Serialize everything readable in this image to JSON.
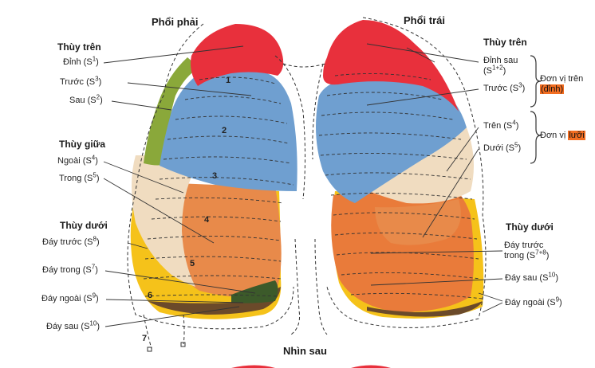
{
  "titles": {
    "right_lung": "Phổi phải",
    "left_lung": "Phổi trái",
    "view": "Nhìn sau"
  },
  "right": {
    "upper_lobe": "Thùy trên",
    "apical": {
      "name": "Đỉnh (S",
      "sup": "1",
      "end": ")"
    },
    "anterior": {
      "name": "Trước (S",
      "sup": "3",
      "end": ")"
    },
    "posterior": {
      "name": "Sau (S",
      "sup": "2",
      "end": ")"
    },
    "middle_lobe": "Thùy giữa",
    "lateral": {
      "name": "Ngoài (S",
      "sup": "4",
      "end": ")"
    },
    "medial": {
      "name": "Trong (S",
      "sup": "5",
      "end": ")"
    },
    "lower_lobe": "Thùy dưới",
    "ant_basal": {
      "name": "Đáy trước (S",
      "sup": "8",
      "end": ")"
    },
    "med_basal": {
      "name": "Đáy trong (S",
      "sup": "7",
      "end": ")"
    },
    "lat_basal": {
      "name": "Đáy ngoài (S",
      "sup": "9",
      "end": ")"
    },
    "post_basal": {
      "name": "Đáy sau (S",
      "sup": "10",
      "end": ")"
    }
  },
  "left": {
    "upper_lobe": "Thùy trên",
    "apicoposterior": {
      "name": "Đỉnh sau",
      "line2": "(S",
      "sup": "1+2",
      "end": ")"
    },
    "anterior": {
      "name": "Trước (S",
      "sup": "3",
      "end": ")"
    },
    "superior": {
      "name": "Trên (S",
      "sup": "4",
      "end": ")"
    },
    "inferior": {
      "name": "Dưới (S",
      "sup": "5",
      "end": ")"
    },
    "lower_lobe": "Thùy dưới",
    "anteromedial_basal": {
      "name": "Đáy trước",
      "line2": "trong (S",
      "sup": "7+8",
      "end": ")"
    },
    "post_basal": {
      "name": "Đáy sau (S",
      "sup": "10",
      "end": ")"
    },
    "lat_basal": {
      "name": "Đáy ngoài (S",
      "sup": "9",
      "end": ")"
    },
    "unit_upper": {
      "prefix": "Đơn vị trên",
      "highlight": "(đỉnh)"
    },
    "unit_lingula": {
      "prefix": "Đơn vị ",
      "highlight": "lưỡi"
    }
  },
  "contour_numbers": [
    "1",
    "2",
    "3",
    "4",
    "5",
    "6",
    "7"
  ],
  "colors": {
    "apical": "#e8303c",
    "anterior_blue": "#6f9fd0",
    "posterior_green": "#8aa83a",
    "lateral_cream": "#f0dcc0",
    "medial_orange": "#e88a4a",
    "basal_orange": "#e97b3a",
    "basal_yellow": "#f5c21a",
    "basal_brown": "#6b4a2a",
    "highlight": "#f26d21"
  }
}
